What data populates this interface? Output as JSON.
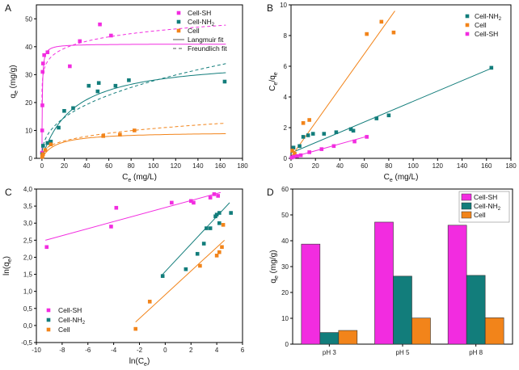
{
  "colors": {
    "sh": "#f22ce0",
    "nh2": "#127d7b",
    "cell": "#f2841a"
  },
  "chart_data": [
    {
      "panel": "A",
      "type": "scatter",
      "xlabel": "C_e (mg/L)",
      "ylabel": "q_e (mg/g)",
      "xlim": [
        -5,
        180
      ],
      "ylim": [
        0,
        55
      ],
      "xticks": [
        0,
        20,
        40,
        60,
        80,
        100,
        120,
        140,
        160,
        180
      ],
      "yticks": [
        0,
        10,
        20,
        30,
        40,
        50
      ],
      "legend": [
        "Cell-SH",
        "Cell-NH2",
        "Cell",
        "Langmuir fit",
        "Freundlich fit"
      ],
      "series": [
        {
          "name": "Cell-SH",
          "color": "sh",
          "points": [
            [
              0.1,
              2.0
            ],
            [
              0.2,
              10
            ],
            [
              0.4,
              19
            ],
            [
              0.6,
              31
            ],
            [
              1,
              34
            ],
            [
              2,
              37
            ],
            [
              5,
              38
            ],
            [
              25,
              33
            ],
            [
              34,
              42
            ],
            [
              52,
              48
            ],
            [
              62,
              44
            ]
          ]
        },
        {
          "name": "Cell-NH2",
          "color": "nh2",
          "points": [
            [
              0.3,
              1.5
            ],
            [
              1,
              4.5
            ],
            [
              5,
              5.5
            ],
            [
              8,
              6
            ],
            [
              15,
              11
            ],
            [
              20,
              17
            ],
            [
              28,
              18
            ],
            [
              42,
              26
            ],
            [
              50,
              24
            ],
            [
              51,
              27
            ],
            [
              66,
              26
            ],
            [
              78,
              28
            ],
            [
              164,
              27.5
            ]
          ]
        },
        {
          "name": "Cell",
          "color": "cell",
          "points": [
            [
              0.2,
              0.5
            ],
            [
              0.5,
              1
            ],
            [
              1,
              1.5
            ],
            [
              3,
              3
            ],
            [
              8,
              5
            ],
            [
              55,
              8
            ],
            [
              70,
              8.5
            ],
            [
              83,
              10
            ]
          ]
        }
      ],
      "fits": [
        {
          "series": "Cell-SH",
          "model": "Langmuir",
          "qmax": 41,
          "K": 3
        },
        {
          "series": "Cell-SH",
          "model": "Freundlich",
          "KF": 30,
          "n": 11
        },
        {
          "series": "Cell-NH2",
          "model": "Langmuir",
          "qmax": 36,
          "K": 0.035
        },
        {
          "series": "Cell-NH2",
          "model": "Freundlich",
          "KF": 4.4,
          "n": 2.5
        },
        {
          "series": "Cell",
          "model": "Langmuir",
          "qmax": 9.5,
          "K": 0.08
        },
        {
          "series": "Cell",
          "model": "Freundlich",
          "KF": 2.3,
          "n": 3
        }
      ]
    },
    {
      "panel": "B",
      "type": "scatter",
      "xlabel": "C_e (mg/L)",
      "ylabel": "C_e/q_e",
      "xlim": [
        0,
        180
      ],
      "ylim": [
        0,
        10
      ],
      "xticks": [
        0,
        20,
        40,
        60,
        80,
        100,
        120,
        140,
        160,
        180
      ],
      "yticks": [
        0,
        2,
        4,
        6,
        8,
        10
      ],
      "legend": [
        "Cell-NH2",
        "Cell",
        "Cell-SH"
      ],
      "series": [
        {
          "name": "Cell-NH2",
          "color": "nh2",
          "points": [
            [
              2,
              0.7
            ],
            [
              7,
              0.8
            ],
            [
              10,
              1.4
            ],
            [
              14,
              1.5
            ],
            [
              18,
              1.6
            ],
            [
              27,
              1.6
            ],
            [
              37,
              1.7
            ],
            [
              49,
              1.9
            ],
            [
              51,
              1.8
            ],
            [
              70,
              2.6
            ],
            [
              80,
              2.8
            ],
            [
              164,
              5.9
            ]
          ],
          "line": [
            [
              0,
              0.35
            ],
            [
              165,
              5.9
            ]
          ]
        },
        {
          "name": "Cell",
          "color": "cell",
          "points": [
            [
              1,
              0.5
            ],
            [
              3,
              0.3
            ],
            [
              10,
              2.3
            ],
            [
              15,
              2.5
            ],
            [
              62,
              8.1
            ],
            [
              74,
              8.9
            ],
            [
              84,
              8.2
            ]
          ],
          "line": [
            [
              0,
              0.1
            ],
            [
              85,
              9.6
            ]
          ]
        },
        {
          "name": "Cell-SH",
          "color": "sh",
          "points": [
            [
              0.5,
              0.05
            ],
            [
              2,
              0.1
            ],
            [
              5,
              0.15
            ],
            [
              8,
              0.2
            ],
            [
              15,
              0.4
            ],
            [
              25,
              0.6
            ],
            [
              35,
              0.8
            ],
            [
              52,
              1.1
            ],
            [
              62,
              1.4
            ]
          ],
          "line": [
            [
              0,
              0.05
            ],
            [
              63,
              1.45
            ]
          ]
        }
      ]
    },
    {
      "panel": "C",
      "type": "scatter",
      "xlabel": "ln(C_e)",
      "ylabel": "ln(q_e)",
      "xlim": [
        -10,
        6
      ],
      "ylim": [
        -0.5,
        4.0
      ],
      "xticks": [
        -10,
        -8,
        -6,
        -4,
        -2,
        0,
        2,
        4,
        6
      ],
      "yticks": [
        -0.5,
        0.0,
        0.5,
        1.0,
        1.5,
        2.0,
        2.5,
        3.0,
        3.5,
        4.0
      ],
      "ytick_labels": [
        "-0,5",
        "0,0",
        "0,5",
        "1,0",
        "1,5",
        "2,0",
        "2,5",
        "3,0",
        "3,5",
        "4,0"
      ],
      "legend": [
        "Cell-SH",
        "Cell-NH2",
        "Cell"
      ],
      "series": [
        {
          "name": "Cell-SH",
          "color": "sh",
          "points": [
            [
              -9.2,
              2.3
            ],
            [
              -4.2,
              2.9
            ],
            [
              -3.8,
              3.45
            ],
            [
              0.5,
              3.6
            ],
            [
              2.0,
              3.65
            ],
            [
              3.5,
              3.75
            ],
            [
              3.8,
              3.85
            ],
            [
              4.1,
              3.8
            ],
            [
              2.2,
              3.6
            ]
          ],
          "line": [
            [
              -9.3,
              2.5
            ],
            [
              4.3,
              3.9
            ]
          ]
        },
        {
          "name": "Cell-NH2",
          "color": "nh2",
          "points": [
            [
              -0.2,
              1.45
            ],
            [
              1.6,
              1.65
            ],
            [
              2.5,
              2.1
            ],
            [
              3.0,
              2.4
            ],
            [
              3.2,
              2.85
            ],
            [
              3.5,
              2.85
            ],
            [
              3.9,
              3.2
            ],
            [
              4.0,
              3.25
            ],
            [
              4.2,
              3.3
            ],
            [
              5.1,
              3.3
            ],
            [
              4.2,
              3.0
            ]
          ],
          "line": [
            [
              -0.2,
              1.5
            ],
            [
              5.0,
              3.6
            ]
          ]
        },
        {
          "name": "Cell",
          "color": "cell",
          "points": [
            [
              -2.3,
              -0.1
            ],
            [
              -1.2,
              0.7
            ],
            [
              2.7,
              1.75
            ],
            [
              4.0,
              2.05
            ],
            [
              4.2,
              2.15
            ],
            [
              4.4,
              2.3
            ],
            [
              4.5,
              2.95
            ]
          ],
          "line": [
            [
              -2.3,
              0.1
            ],
            [
              4.6,
              2.5
            ]
          ]
        }
      ]
    },
    {
      "panel": "D",
      "type": "bar",
      "xlabel": "",
      "ylabel": "q_e (mg/g)",
      "ylim": [
        0,
        60
      ],
      "yticks": [
        0,
        10,
        20,
        30,
        40,
        50,
        60
      ],
      "categories": [
        "pH 3",
        "pH 5",
        "pH 8"
      ],
      "series": [
        {
          "name": "Cell-SH",
          "color": "sh",
          "values": [
            38.7,
            47.2,
            46.0
          ]
        },
        {
          "name": "Cell-NH2",
          "color": "nh2",
          "values": [
            4.5,
            26.3,
            26.6
          ]
        },
        {
          "name": "Cell",
          "color": "cell",
          "values": [
            5.3,
            10.1,
            10.2
          ]
        }
      ],
      "legend": [
        "Cell-SH",
        "Cell-NH2",
        "Cell"
      ]
    }
  ]
}
